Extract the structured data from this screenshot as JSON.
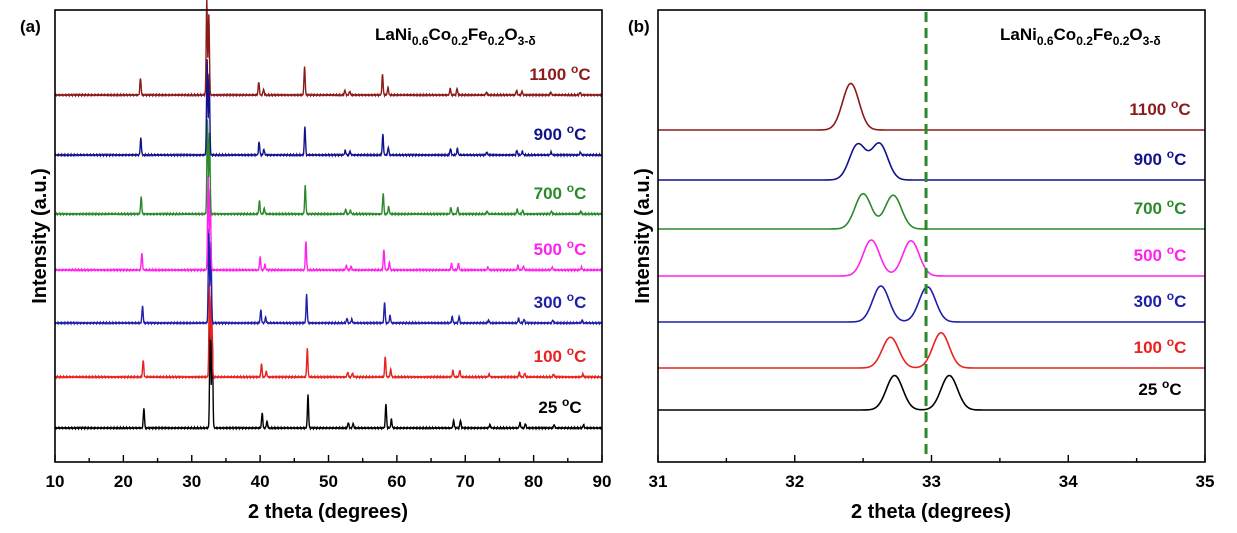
{
  "chart_data": [
    {
      "type": "line",
      "panel": "(a)",
      "title": "LaNi0.6Co0.2Fe0.2O3-δ",
      "formula": {
        "base": "LaNi",
        "s1": "0.6",
        "b2": "Co",
        "s2": "0.2",
        "b3": "Fe",
        "s3": "0.2",
        "b4": "O",
        "s4": "3-δ"
      },
      "xlabel": "2 theta (degrees)",
      "ylabel": "Intensity (a.u.)",
      "xlim": [
        10,
        90
      ],
      "xticks": [
        "10",
        "20",
        "30",
        "40",
        "50",
        "60",
        "70",
        "80",
        "90"
      ],
      "grid": false,
      "peaks": [
        {
          "x": 23.0,
          "h": 0.18
        },
        {
          "x": 32.7,
          "h": 1.0
        },
        {
          "x": 33.0,
          "h": 0.85
        },
        {
          "x": 40.3,
          "h": 0.14
        },
        {
          "x": 41.0,
          "h": 0.06
        },
        {
          "x": 47.0,
          "h": 0.3
        },
        {
          "x": 52.9,
          "h": 0.05
        },
        {
          "x": 53.6,
          "h": 0.04
        },
        {
          "x": 58.4,
          "h": 0.22
        },
        {
          "x": 59.2,
          "h": 0.08
        },
        {
          "x": 68.3,
          "h": 0.07
        },
        {
          "x": 69.3,
          "h": 0.07
        },
        {
          "x": 73.6,
          "h": 0.03
        },
        {
          "x": 78.0,
          "h": 0.05
        },
        {
          "x": 78.8,
          "h": 0.04
        },
        {
          "x": 83.0,
          "h": 0.03
        },
        {
          "x": 87.3,
          "h": 0.03
        }
      ],
      "series": [
        {
          "name": "25 °C",
          "temp": "25 ",
          "color": "#000000",
          "shift": 0.0
        },
        {
          "name": "100 °C",
          "temp": "100 ",
          "color": "#e8231f",
          "shift": -0.1
        },
        {
          "name": "300 °C",
          "temp": "300 ",
          "color": "#1f1faa",
          "shift": -0.2
        },
        {
          "name": "500 °C",
          "temp": "500 ",
          "color": "#ff22ee",
          "shift": -0.3
        },
        {
          "name": "700 °C",
          "temp": "700 ",
          "color": "#2a8a2a",
          "shift": -0.4
        },
        {
          "name": "900 °C",
          "temp": "900 ",
          "color": "#12128c",
          "shift": -0.45
        },
        {
          "name": "1100 °C",
          "temp": "1100 ",
          "color": "#8b1a1a",
          "shift": -0.5
        }
      ]
    },
    {
      "type": "line",
      "panel": "(b)",
      "title": "LaNi0.6Co0.2Fe0.2O3-δ",
      "formula": {
        "base": "LaNi",
        "s1": "0.6",
        "b2": "Co",
        "s2": "0.2",
        "b3": "Fe",
        "s3": "0.2",
        "b4": "O",
        "s4": "3-δ"
      },
      "xlabel": "2 theta (degrees)",
      "ylabel": "Intensity (a.u.)",
      "xlim": [
        31,
        35
      ],
      "xticks": [
        "31",
        "32",
        "33",
        "34",
        "35"
      ],
      "grid": false,
      "reference_line": {
        "x": 32.96,
        "color": "#2a8a2a",
        "style": "dashed"
      },
      "series": [
        {
          "name": "25 °C",
          "temp": "25 ",
          "color": "#000000",
          "peaks": [
            {
              "x": 32.73,
              "h": 0.46
            },
            {
              "x": 33.13,
              "h": 0.46
            }
          ]
        },
        {
          "name": "100 °C",
          "temp": "100 ",
          "color": "#e8231f",
          "peaks": [
            {
              "x": 32.7,
              "h": 0.41
            },
            {
              "x": 33.07,
              "h": 0.47
            }
          ]
        },
        {
          "name": "300 °C",
          "temp": "300 ",
          "color": "#1f1faa",
          "peaks": [
            {
              "x": 32.63,
              "h": 0.48
            },
            {
              "x": 32.97,
              "h": 0.47
            }
          ]
        },
        {
          "name": "500 °C",
          "temp": "500 ",
          "color": "#ff22ee",
          "peaks": [
            {
              "x": 32.56,
              "h": 0.48
            },
            {
              "x": 32.85,
              "h": 0.47
            }
          ]
        },
        {
          "name": "700 °C",
          "temp": "700 ",
          "color": "#2a8a2a",
          "peaks": [
            {
              "x": 32.5,
              "h": 0.47
            },
            {
              "x": 32.72,
              "h": 0.45
            }
          ]
        },
        {
          "name": "900 °C",
          "temp": "900 ",
          "color": "#12128c",
          "peaks": [
            {
              "x": 32.46,
              "h": 0.47
            },
            {
              "x": 32.62,
              "h": 0.48
            }
          ]
        },
        {
          "name": "1100 °C",
          "temp": "1100 ",
          "color": "#8b1a1a",
          "peaks": [
            {
              "x": 32.41,
              "h": 0.62
            }
          ]
        }
      ]
    }
  ]
}
